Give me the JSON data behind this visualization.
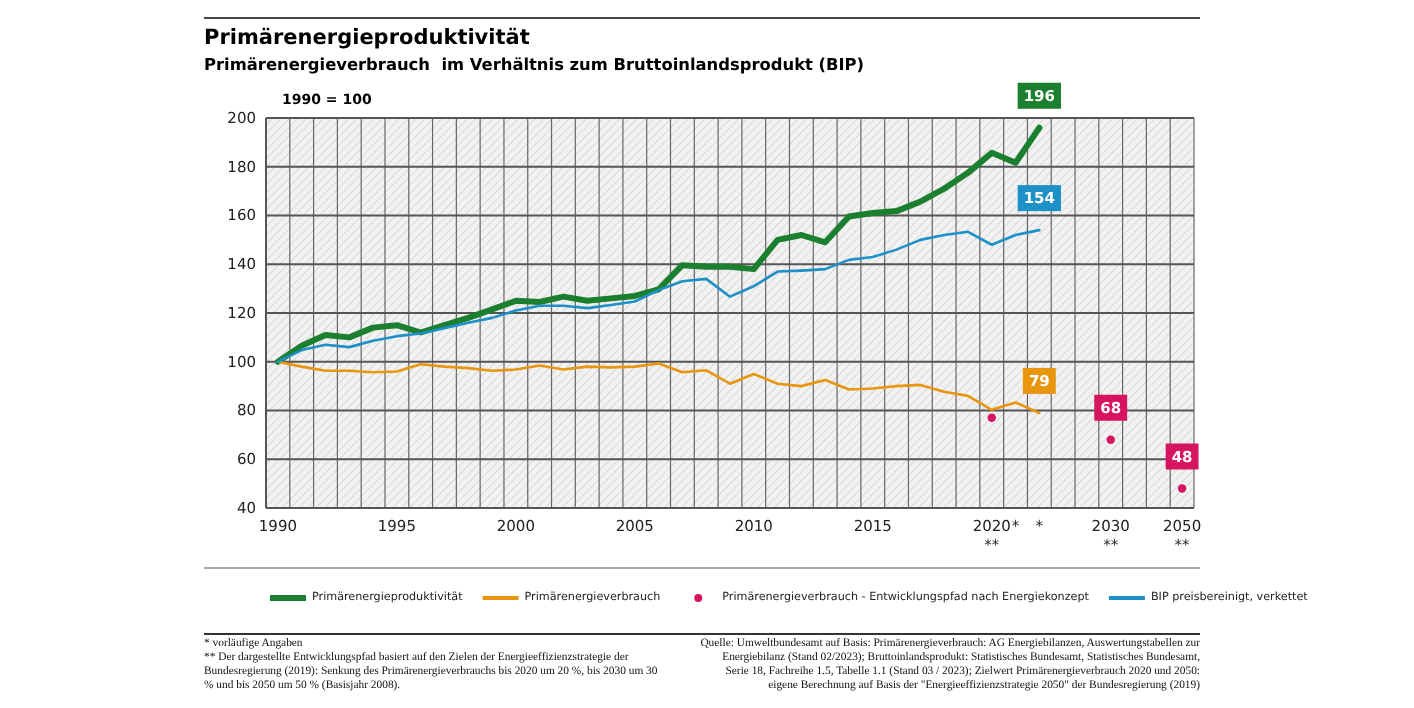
{
  "chart_data": {
    "type": "line",
    "title": "Primärenergieproduktivität",
    "subtitle": "Primärenergieverbrauch  im Verhältnis zum Bruttoinlandsprodukt (BIP)",
    "ylabel": "1990 = 100",
    "categories": [
      "1990",
      null,
      null,
      null,
      null,
      "1995",
      null,
      null,
      null,
      null,
      "2000",
      null,
      null,
      null,
      null,
      "2005",
      null,
      null,
      null,
      null,
      "2010",
      null,
      null,
      null,
      null,
      "2015",
      null,
      null,
      null,
      null,
      "2020\n**",
      "*",
      "*",
      null,
      null,
      "2030\n**",
      null,
      null,
      "2050\n**"
    ],
    "series": [
      {
        "name": "Primärenergieproduktivität",
        "color": "#1a7f2e",
        "values": [
          100,
          106.6,
          111,
          110,
          114,
          115,
          112,
          115,
          118,
          121.5,
          125,
          124.5,
          126.7,
          125,
          126,
          127,
          129.7,
          139.6,
          139,
          139,
          138,
          150,
          152,
          149,
          159.6,
          161,
          161.8,
          165.7,
          171,
          177.5,
          185.7,
          181.6,
          196,
          null,
          null,
          null,
          null,
          null,
          null
        ],
        "value_labels": [
          null,
          null,
          null,
          null,
          null,
          null,
          null,
          null,
          null,
          null,
          null,
          null,
          null,
          null,
          null,
          null,
          null,
          null,
          null,
          null,
          null,
          null,
          null,
          null,
          null,
          null,
          null,
          null,
          null,
          null,
          null,
          null,
          "196",
          null,
          null,
          null,
          null,
          null,
          null
        ]
      },
      {
        "name": "Primärenergieverbrauch",
        "color": "#e8950f",
        "values": [
          100,
          98,
          96.3,
          96.3,
          95.7,
          96,
          99,
          98,
          97.4,
          96.3,
          96.8,
          98.5,
          96.8,
          98,
          97.7,
          98,
          99.3,
          95.7,
          96.5,
          91,
          95,
          91,
          90,
          92.5,
          88.6,
          89,
          90,
          90.5,
          87.7,
          86,
          80.3,
          83.3,
          79,
          null,
          null,
          null,
          null,
          null,
          null
        ],
        "value_labels": [
          null,
          null,
          null,
          null,
          null,
          null,
          null,
          null,
          null,
          null,
          null,
          null,
          null,
          null,
          null,
          null,
          null,
          null,
          null,
          null,
          null,
          null,
          null,
          null,
          null,
          null,
          null,
          null,
          null,
          null,
          null,
          null,
          "79",
          null,
          null,
          null,
          null,
          null,
          null
        ]
      },
      {
        "name": "Primärenergieverbrauch - Entwicklungspfad nach Energiekonzept",
        "color": "#d6145f",
        "type": "scatter",
        "marker": "circle",
        "values": [
          null,
          null,
          null,
          null,
          null,
          null,
          null,
          null,
          null,
          null,
          null,
          null,
          null,
          null,
          null,
          null,
          null,
          null,
          null,
          null,
          null,
          null,
          null,
          null,
          null,
          null,
          null,
          null,
          null,
          null,
          77,
          null,
          null,
          null,
          null,
          68,
          null,
          null,
          48
        ],
        "value_labels": [
          null,
          null,
          null,
          null,
          null,
          null,
          null,
          null,
          null,
          null,
          null,
          null,
          null,
          null,
          null,
          null,
          null,
          null,
          null,
          null,
          null,
          null,
          null,
          null,
          null,
          null,
          null,
          null,
          null,
          null,
          null,
          null,
          null,
          null,
          null,
          "68",
          null,
          null,
          "48"
        ]
      },
      {
        "name": "BIP preisbereinigt, verkettet",
        "color": "#1e90c8",
        "values": [
          100,
          104.8,
          107,
          106,
          108.6,
          110.5,
          111.6,
          113.8,
          116,
          118,
          121,
          123,
          123,
          122,
          123.3,
          124.7,
          129.4,
          133,
          134,
          126.7,
          131,
          137,
          137.4,
          138,
          141.8,
          143,
          146,
          150,
          152,
          153.3,
          148,
          152,
          154,
          null,
          null,
          null,
          null,
          null,
          null
        ],
        "value_labels": [
          null,
          null,
          null,
          null,
          null,
          null,
          null,
          null,
          null,
          null,
          null,
          null,
          null,
          null,
          null,
          null,
          null,
          null,
          null,
          null,
          null,
          null,
          null,
          null,
          null,
          null,
          null,
          null,
          null,
          null,
          null,
          null,
          "154",
          null,
          null,
          null,
          null,
          null,
          null
        ]
      }
    ],
    "ylim": [
      40,
      200
    ],
    "yticks": [
      40,
      60,
      80,
      100,
      120,
      140,
      160,
      180,
      200
    ],
    "grid": true,
    "legend": "bottom",
    "annotations": [
      "* vorläufige Angaben",
      "** Der dargestellte Entwicklungspfad basiert auf den Zielen der Energieeffizienzstrategie der Bundesregierung (2019): Senkung des Primärenergieverbrauchs bis 2020 um 20 %, bis 2030 um 30 % und bis 2050 um 50 % (Basisjahr 2008).",
      "Quelle: Umweltbundesamt auf Basis: Primärenergieverbrauch: AG Energiebilanzen, Auswertungstabellen zur Energiebilanz (Stand 02/2023); Bruttoinlandsprodukt: Statistisches Bundesamt, Statistisches Bundesamt, Serie 18, Fachreihe 1.5, Tabelle 1.1 (Stand 03 / 2023); Zielwert Primärenergieverbrauch 2020 und 2050: eigene Berechnung auf Basis der \"Energieeffizienzstrategie 2050\" der Bundesregierung (2019)"
    ]
  }
}
